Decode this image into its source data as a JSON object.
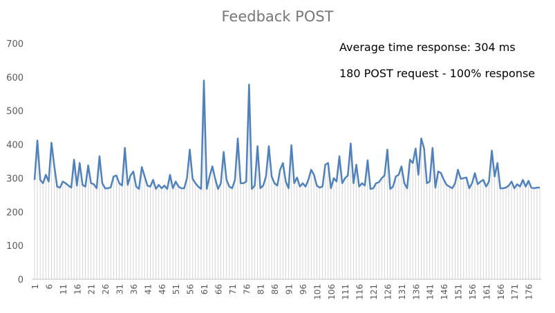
{
  "chart_data": {
    "type": "line",
    "title": "Feedback POST",
    "annotations": [
      "Average time response: 304 ms",
      "180 POST request - 100% response"
    ],
    "xlabel": "",
    "ylabel": "",
    "ylim": [
      0,
      700
    ],
    "yticks": [
      0,
      100,
      200,
      300,
      400,
      500,
      600,
      700
    ],
    "xticks": [
      1,
      6,
      11,
      16,
      21,
      26,
      31,
      36,
      41,
      46,
      51,
      56,
      61,
      66,
      71,
      76,
      81,
      86,
      91,
      96,
      101,
      106,
      111,
      116,
      121,
      126,
      131,
      136,
      141,
      146,
      151,
      156,
      161,
      166,
      171,
      176
    ],
    "x_start": 1,
    "count": 180,
    "drop_lines": true,
    "grid": false,
    "colors": {
      "line": "#4f81bd",
      "drop": "#d4d4d4",
      "axis_text": "#595959"
    },
    "values": [
      295,
      412,
      295,
      285,
      310,
      290,
      405,
      335,
      275,
      272,
      290,
      285,
      278,
      272,
      355,
      278,
      345,
      280,
      275,
      338,
      285,
      282,
      270,
      365,
      285,
      270,
      270,
      273,
      305,
      308,
      285,
      278,
      390,
      280,
      308,
      320,
      275,
      268,
      333,
      305,
      278,
      275,
      295,
      268,
      280,
      270,
      278,
      268,
      310,
      270,
      290,
      275,
      270,
      270,
      300,
      385,
      298,
      285,
      275,
      268,
      590,
      268,
      305,
      335,
      298,
      268,
      285,
      378,
      295,
      275,
      270,
      295,
      418,
      285,
      285,
      290,
      578,
      268,
      278,
      395,
      270,
      278,
      305,
      395,
      305,
      285,
      278,
      325,
      345,
      290,
      270,
      398,
      285,
      302,
      275,
      285,
      275,
      295,
      325,
      310,
      278,
      272,
      275,
      340,
      345,
      270,
      300,
      290,
      365,
      285,
      300,
      308,
      403,
      285,
      340,
      275,
      285,
      278,
      353,
      268,
      270,
      285,
      288,
      300,
      308,
      385,
      268,
      275,
      305,
      310,
      335,
      285,
      270,
      355,
      345,
      388,
      310,
      418,
      388,
      285,
      290,
      390,
      272,
      320,
      315,
      295,
      280,
      275,
      270,
      285,
      325,
      298,
      300,
      302,
      270,
      285,
      315,
      282,
      290,
      295,
      275,
      290,
      382,
      305,
      345,
      270,
      270,
      272,
      278,
      290,
      270,
      282,
      275,
      295,
      275,
      292,
      272,
      270,
      272,
      272
    ]
  }
}
